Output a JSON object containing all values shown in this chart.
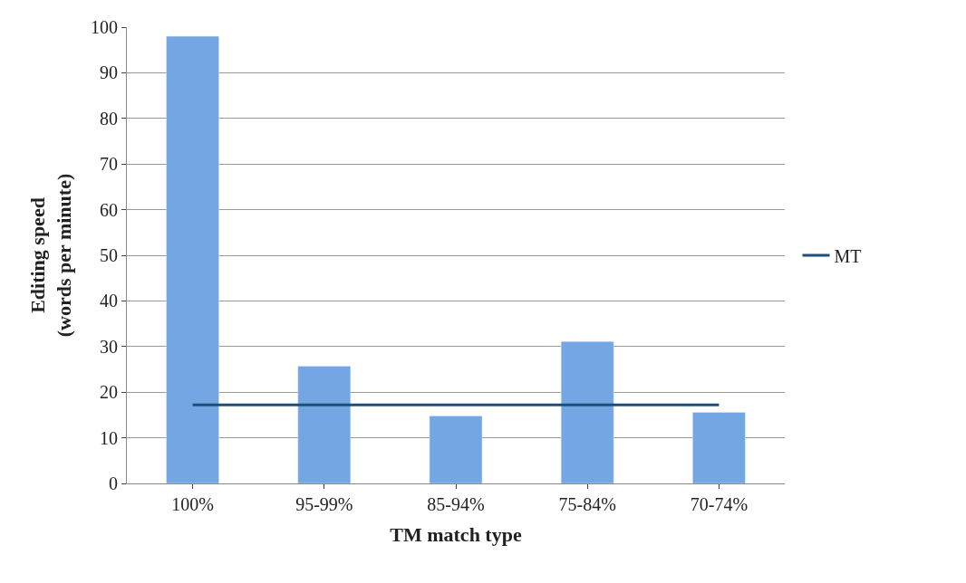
{
  "chart_data": {
    "type": "bar",
    "xlabel": "TM match type",
    "ylabel": "Editing speed\n(words per minute)",
    "categories": [
      "100%",
      "95-99%",
      "85-94%",
      "75-84%",
      "70-74%"
    ],
    "series": [
      {
        "color": "#73a6e3",
        "values": [
          98,
          25.7,
          14.8,
          31.1,
          15.6
        ]
      },
      {
        "name": "MT",
        "type": "line",
        "color": "#1f4e79",
        "values": [
          17.2,
          17.2,
          17.2,
          17.2,
          17.2
        ]
      }
    ],
    "ylim": [
      0,
      100
    ],
    "yticks": [
      0,
      10,
      20,
      30,
      40,
      50,
      60,
      70,
      80,
      90,
      100
    ],
    "grid": "y",
    "legend": "right",
    "marker": "none"
  }
}
